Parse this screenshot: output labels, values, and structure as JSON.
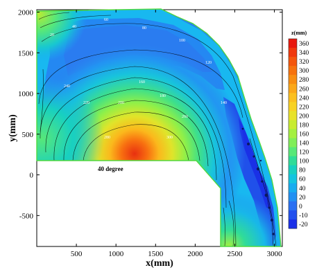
{
  "chart_data": {
    "type": "heatmap",
    "xlabel": "x(mm)",
    "ylabel": "y(mm)",
    "x_ticks": [
      500,
      1000,
      1500,
      2000,
      2500,
      3000
    ],
    "y_ticks": [
      -500,
      0,
      500,
      1000,
      1500,
      2000
    ],
    "xlim": [
      0,
      3100
    ],
    "ylim": [
      -880,
      2030
    ],
    "colorbar": {
      "title": "z(mm)",
      "levels": [
        360,
        340,
        320,
        300,
        280,
        260,
        240,
        220,
        200,
        180,
        160,
        140,
        120,
        100,
        80,
        60,
        40,
        20,
        0,
        -10,
        -20
      ],
      "colors": [
        "#e8180e",
        "#f0380c",
        "#f4560c",
        "#f6720e",
        "#f88e12",
        "#fba81a",
        "#fbc020",
        "#f8d224",
        "#e8e22a",
        "#c8ec30",
        "#a4f040",
        "#80ee58",
        "#58e878",
        "#30dc98",
        "#18d0c0",
        "#14c4e0",
        "#18acf0",
        "#2290f2",
        "#2a70f2",
        "#2250ee",
        "#1a30e8"
      ]
    },
    "annotation": "40 degree",
    "contour_labels": [
      "20",
      "40",
      "60",
      "80",
      "100",
      "120",
      "140",
      "160",
      "180",
      "200",
      "220",
      "240",
      "260",
      "280",
      "300"
    ]
  }
}
